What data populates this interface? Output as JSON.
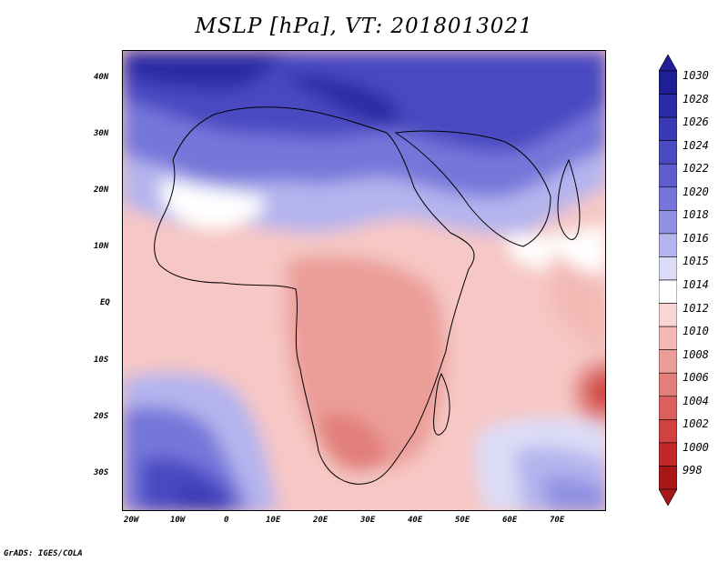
{
  "title": "MSLP [hPa], VT: 2018013021",
  "credit": "GrADS: IGES/COLA",
  "axes": {
    "lat_labels": [
      "40N",
      "30N",
      "20N",
      "10N",
      "EQ",
      "10S",
      "20S",
      "30S"
    ],
    "lon_labels": [
      "20W",
      "10W",
      "0",
      "10E",
      "20E",
      "30E",
      "40E",
      "50E",
      "60E",
      "70E"
    ]
  },
  "colorbar": {
    "levels": [
      "1030",
      "1028",
      "1026",
      "1024",
      "1022",
      "1020",
      "1018",
      "1016",
      "1015",
      "1014",
      "1012",
      "1010",
      "1008",
      "1006",
      "1004",
      "1002",
      "1000",
      "998"
    ],
    "colors": [
      "#1e1e96",
      "#2a2aa5",
      "#3a3ab4",
      "#4a4ac2",
      "#5e5ecf",
      "#7676da",
      "#9090e3",
      "#b4b4ee",
      "#dcdcf7",
      "#ffffff",
      "#f9d6d4",
      "#f3b9b5",
      "#eb9d98",
      "#e27f7a",
      "#d9605c",
      "#cf4240",
      "#c0282a",
      "#a81717"
    ]
  }
}
